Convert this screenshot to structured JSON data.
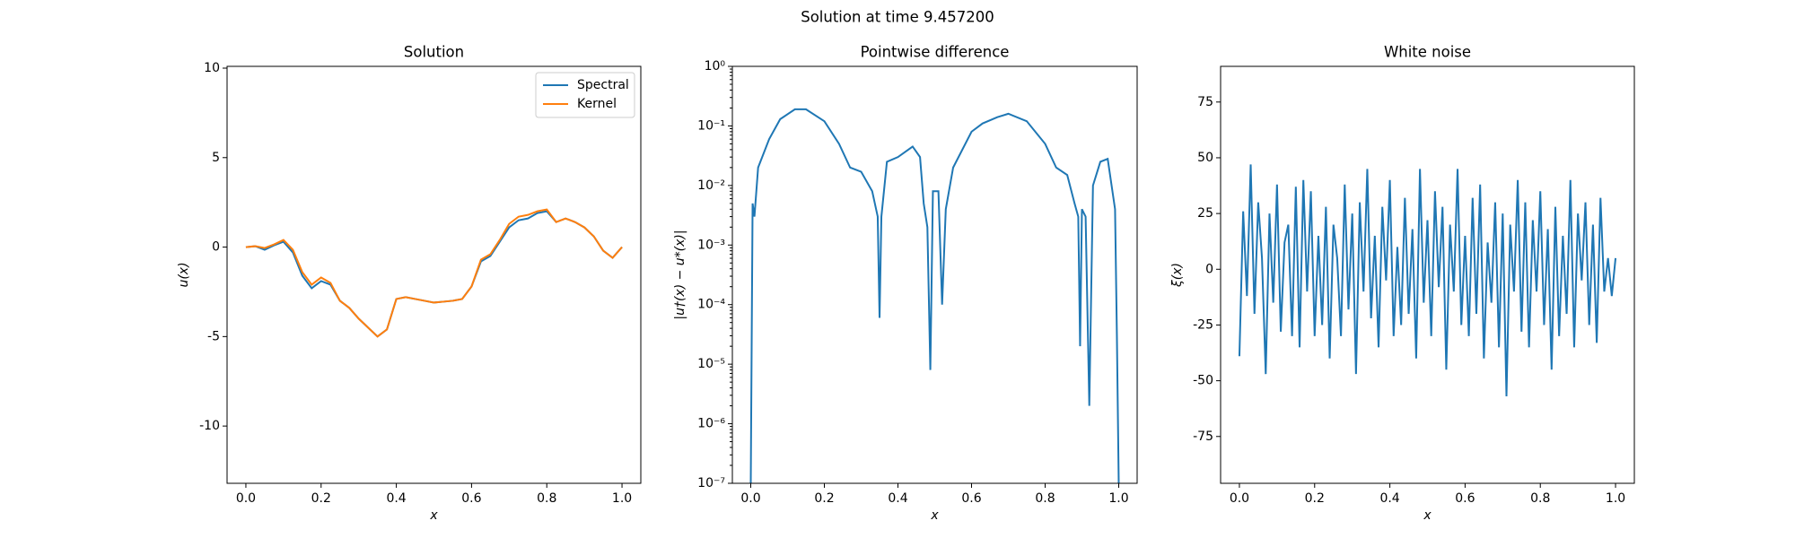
{
  "title": "Solution at time 9.457200",
  "chart_data": [
    {
      "type": "line",
      "title": "Solution",
      "x_label": "x",
      "y_label": "u(x)",
      "xlim": [
        -0.05,
        1.05
      ],
      "ylim": [
        -13.2,
        10.1
      ],
      "xticks": [
        {
          "value": 0,
          "label": "0.0"
        },
        0.2,
        0.4,
        0.6,
        0.8,
        {
          "value": 1,
          "label": "1.0"
        }
      ],
      "yticks": [
        -10,
        -5,
        0,
        5,
        10
      ],
      "legend": "upper right",
      "log_y": false,
      "x": [
        0,
        0.025,
        0.05,
        0.075,
        0.1,
        0.125,
        0.15,
        0.175,
        0.2,
        0.225,
        0.25,
        0.275,
        0.3,
        0.325,
        0.35,
        0.375,
        0.4,
        0.425,
        0.45,
        0.475,
        0.5,
        0.525,
        0.55,
        0.575,
        0.6,
        0.625,
        0.65,
        0.675,
        0.7,
        0.725,
        0.75,
        0.775,
        0.8,
        0.825,
        0.85,
        0.875,
        0.9,
        0.925,
        0.95,
        0.975,
        1
      ],
      "series": [
        {
          "name": "Spectral",
          "color": "#1f77b4",
          "values": [
            0,
            0.05,
            -0.15,
            0.1,
            0.3,
            -0.3,
            -1.6,
            -2.3,
            -1.9,
            -2.1,
            -3.0,
            -3.4,
            -4.0,
            -4.5,
            -5.0,
            -4.6,
            -2.9,
            -2.8,
            -2.9,
            -3.0,
            -3.1,
            -3.05,
            -3.0,
            -2.9,
            -2.2,
            -0.8,
            -0.5,
            0.3,
            1.1,
            1.5,
            1.6,
            1.9,
            2.0,
            1.4,
            1.6,
            1.4,
            1.1,
            0.6,
            -0.2,
            -0.6,
            0
          ]
        },
        {
          "name": "Kernel",
          "color": "#ff7f0e",
          "values": [
            0,
            0.05,
            -0.05,
            0.15,
            0.4,
            -0.15,
            -1.4,
            -2.1,
            -1.7,
            -2.0,
            -3.0,
            -3.4,
            -4.0,
            -4.5,
            -5.0,
            -4.6,
            -2.9,
            -2.8,
            -2.9,
            -3.0,
            -3.1,
            -3.05,
            -3.0,
            -2.9,
            -2.2,
            -0.7,
            -0.4,
            0.4,
            1.3,
            1.7,
            1.8,
            2.0,
            2.1,
            1.4,
            1.6,
            1.4,
            1.1,
            0.6,
            -0.2,
            -0.6,
            0
          ]
        }
      ]
    },
    {
      "type": "line",
      "title": "Pointwise difference",
      "x_label": "x",
      "y_label": "|u†(x) − u*(x)|",
      "xlim": [
        -0.05,
        1.05
      ],
      "ylim": [
        1e-07,
        1
      ],
      "log_y": true,
      "color": "#1f77b4",
      "xticks": [
        {
          "value": 0,
          "label": "0.0"
        },
        0.2,
        0.4,
        0.6,
        0.8,
        {
          "value": 1,
          "label": "1.0"
        }
      ],
      "yticks": [
        {
          "value": 1e-07,
          "label": "10⁻⁷"
        },
        {
          "value": 1e-06,
          "label": "10⁻⁶"
        },
        {
          "value": 1e-05,
          "label": "10⁻⁵"
        },
        {
          "value": 0.0001,
          "label": "10⁻⁴"
        },
        {
          "value": 0.001,
          "label": "10⁻³"
        },
        {
          "value": 0.01,
          "label": "10⁻²"
        },
        {
          "value": 0.1,
          "label": "10⁻¹"
        },
        {
          "value": 1,
          "label": "10⁰"
        }
      ],
      "x": [
        0,
        0.005,
        0.01,
        0.02,
        0.05,
        0.08,
        0.12,
        0.15,
        0.2,
        0.24,
        0.27,
        0.3,
        0.33,
        0.345,
        0.35,
        0.355,
        0.37,
        0.4,
        0.44,
        0.46,
        0.47,
        0.48,
        0.488,
        0.495,
        0.51,
        0.52,
        0.53,
        0.55,
        0.6,
        0.63,
        0.67,
        0.7,
        0.75,
        0.8,
        0.83,
        0.86,
        0.88,
        0.89,
        0.895,
        0.9,
        0.91,
        0.92,
        0.93,
        0.95,
        0.97,
        0.99,
        0.995,
        1
      ],
      "values": [
        1e-07,
        0.005,
        0.003,
        0.02,
        0.06,
        0.13,
        0.19,
        0.19,
        0.12,
        0.05,
        0.02,
        0.017,
        0.008,
        0.003,
        6e-05,
        0.003,
        0.025,
        0.03,
        0.045,
        0.03,
        0.005,
        0.002,
        8e-06,
        0.008,
        0.008,
        0.0001,
        0.004,
        0.02,
        0.08,
        0.11,
        0.14,
        0.16,
        0.12,
        0.05,
        0.02,
        0.015,
        0.005,
        0.003,
        2e-05,
        0.004,
        0.003,
        2e-06,
        0.01,
        0.025,
        0.028,
        0.004,
        3e-05,
        1e-07
      ]
    },
    {
      "type": "line",
      "title": "White noise",
      "x_label": "x",
      "y_label": "ξ(x)",
      "xlim": [
        -0.05,
        1.05
      ],
      "ylim": [
        -96,
        91
      ],
      "log_y": false,
      "color": "#1f77b4",
      "xticks": [
        {
          "value": 0,
          "label": "0.0"
        },
        0.2,
        0.4,
        0.6,
        0.8,
        {
          "value": 1,
          "label": "1.0"
        }
      ],
      "yticks": [
        -75,
        -50,
        -25,
        0,
        25,
        50,
        75
      ],
      "x": [
        0,
        0.01,
        0.02,
        0.03,
        0.04,
        0.05,
        0.06,
        0.07,
        0.08,
        0.09,
        0.1,
        0.11,
        0.12,
        0.13,
        0.14,
        0.15,
        0.16,
        0.17,
        0.18,
        0.19,
        0.2,
        0.21,
        0.22,
        0.23,
        0.24,
        0.25,
        0.26,
        0.27,
        0.28,
        0.29,
        0.3,
        0.31,
        0.32,
        0.33,
        0.34,
        0.35,
        0.36,
        0.37,
        0.38,
        0.39,
        0.4,
        0.41,
        0.42,
        0.43,
        0.44,
        0.45,
        0.46,
        0.47,
        0.48,
        0.49,
        0.5,
        0.51,
        0.52,
        0.53,
        0.54,
        0.55,
        0.56,
        0.57,
        0.58,
        0.59,
        0.6,
        0.61,
        0.62,
        0.63,
        0.64,
        0.65,
        0.66,
        0.67,
        0.68,
        0.69,
        0.7,
        0.71,
        0.72,
        0.73,
        0.74,
        0.75,
        0.76,
        0.77,
        0.78,
        0.79,
        0.8,
        0.81,
        0.82,
        0.83,
        0.84,
        0.85,
        0.86,
        0.87,
        0.88,
        0.89,
        0.9,
        0.91,
        0.92,
        0.93,
        0.94,
        0.95,
        0.96,
        0.97,
        0.98,
        0.99,
        1
      ],
      "values": [
        -39,
        26,
        -12,
        47,
        -20,
        30,
        5,
        -47,
        25,
        -15,
        38,
        -28,
        12,
        20,
        -30,
        37,
        -35,
        40,
        -10,
        35,
        -30,
        15,
        -25,
        28,
        -40,
        20,
        5,
        -30,
        38,
        -18,
        25,
        -47,
        30,
        -10,
        45,
        -22,
        15,
        -35,
        28,
        -5,
        40,
        -30,
        10,
        -25,
        32,
        -20,
        18,
        -40,
        45,
        -15,
        22,
        -30,
        35,
        -8,
        28,
        -45,
        20,
        -10,
        45,
        -25,
        15,
        -30,
        32,
        -20,
        38,
        -40,
        12,
        -15,
        30,
        -35,
        25,
        -57,
        20,
        -10,
        40,
        -28,
        30,
        -35,
        22,
        -10,
        35,
        -25,
        18,
        -45,
        28,
        -30,
        15,
        -20,
        40,
        -35,
        25,
        -5,
        30,
        -25,
        20,
        -33,
        32,
        -10,
        5,
        -12,
        5
      ]
    }
  ]
}
